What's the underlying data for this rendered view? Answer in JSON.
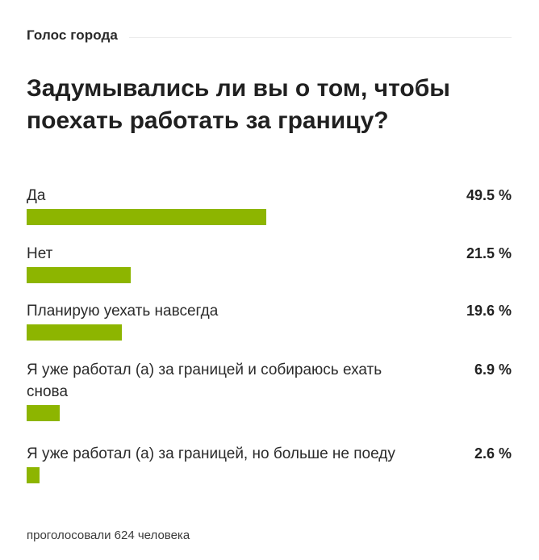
{
  "widget": {
    "title": "Голос города"
  },
  "poll": {
    "question": "Задумывались ли вы о том, чтобы поехать работать за границу?",
    "bar_color": "#8db500",
    "options": [
      {
        "label": "Да",
        "percent_text": "49.5 %",
        "percent": 49.5
      },
      {
        "label": "Нет",
        "percent_text": "21.5 %",
        "percent": 21.5
      },
      {
        "label": "Планирую уехать навсегда",
        "percent_text": "19.6 %",
        "percent": 19.6
      },
      {
        "label": "Я уже работал (а) за границей и собираюсь ехать снова",
        "percent_text": "6.9 %",
        "percent": 6.9
      },
      {
        "label": "Я уже работал (а) за границей, но больше не поеду",
        "percent_text": "2.6 %",
        "percent": 2.6
      }
    ],
    "footer": "проголосовали 624 человека"
  }
}
